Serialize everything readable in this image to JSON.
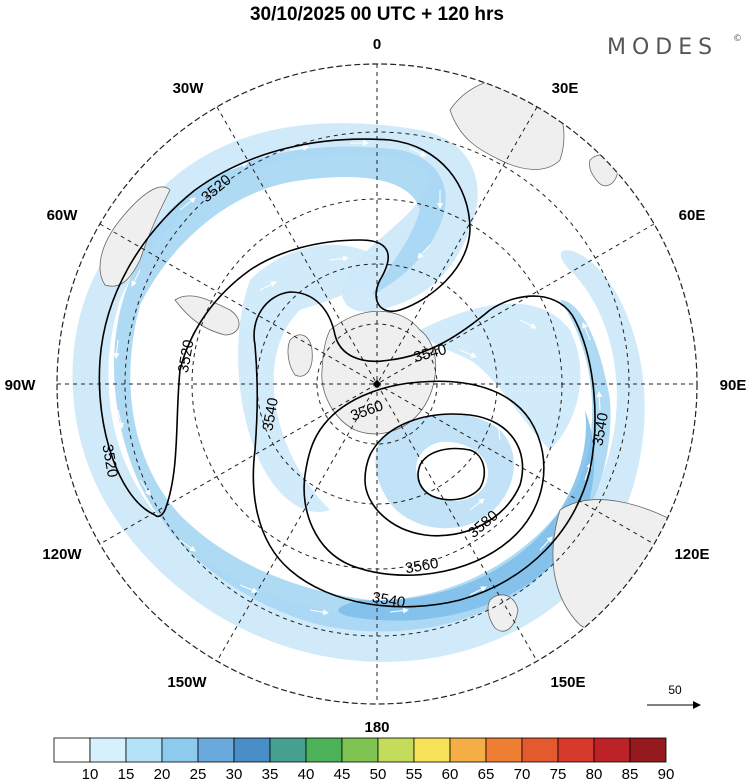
{
  "title": "30/10/2025  00 UTC  + 120 hrs",
  "brand": {
    "name": "MODES",
    "mark": "©"
  },
  "longitude_labels": {
    "top": "0",
    "top_left": "30W",
    "top_right": "30E",
    "upper_left": "60W",
    "upper_right": "60E",
    "left": "90W",
    "right": "90E",
    "lower_left": "120W",
    "lower_right": "120E",
    "bottom_left": "150W",
    "bottom_right": "150E",
    "bottom": "180"
  },
  "contour_labels": {
    "c3520_a": "3520",
    "c3520_b": "3520",
    "c3520_c": "3520",
    "c3540_a": "3540",
    "c3540_b": "3540",
    "c3540_c": "3540",
    "c3540_d": "3540",
    "c3560_a": "3560",
    "c3560_b": "3560",
    "c3580": "3580"
  },
  "reference_vector": {
    "label": "50"
  },
  "colorbar": {
    "labels": [
      "10",
      "15",
      "20",
      "25",
      "30",
      "35",
      "40",
      "45",
      "50",
      "55",
      "60",
      "65",
      "70",
      "75",
      "80",
      "85",
      "90"
    ],
    "colors": [
      "#ffffff",
      "#d6f0fc",
      "#b4e2f7",
      "#8ccbee",
      "#6aa9dc",
      "#4a8ec8",
      "#45a08f",
      "#4cb25a",
      "#7fc452",
      "#c3dc5a",
      "#f8e25a",
      "#f4ae45",
      "#ee7e34",
      "#e35a2e",
      "#d73a2b",
      "#bd2228",
      "#951b1f"
    ]
  },
  "colors": {
    "land": "#efefef",
    "coast": "#666666",
    "wind_light": "#cde9f9",
    "wind_mid": "#a6d6f3",
    "wind_strong": "#7cbde9",
    "contour": "#000000"
  }
}
